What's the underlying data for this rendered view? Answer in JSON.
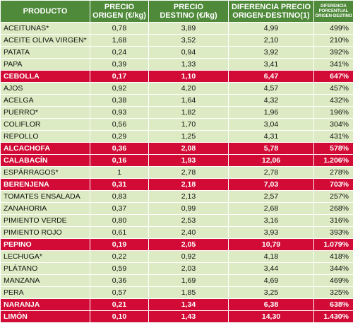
{
  "headers": {
    "producto": "PRODUCTO",
    "origen_line1": "PRECIO",
    "origen_line2": "ORIGEN (€/kg)",
    "destino_line1": "PRECIO",
    "destino_line2": "DESTINO (€/kg)",
    "diferencia_line1": "DIFERENCIA PRECIO",
    "diferencia_line2": "ORIGEN-DESTINO(1)",
    "porcentual_line1": "DIFERENCIA",
    "porcentual_line2": "PORCENTUAL",
    "porcentual_line3": "ORIGEN-DESTINO"
  },
  "rows": [
    {
      "producto": "ACEITUNAS*",
      "origen": "0,78",
      "destino": "3,89",
      "diferencia": "4,99",
      "porcentaje": "499%",
      "highlight": false
    },
    {
      "producto": "ACEITE OLIVA VIRGEN*",
      "origen": "1,68",
      "destino": "3,52",
      "diferencia": "2,10",
      "porcentaje": "210%",
      "highlight": false
    },
    {
      "producto": "PATATA",
      "origen": "0,24",
      "destino": "0,94",
      "diferencia": "3,92",
      "porcentaje": "392%",
      "highlight": false
    },
    {
      "producto": "PAPA",
      "origen": "0,39",
      "destino": "1,33",
      "diferencia": "3,41",
      "porcentaje": "341%",
      "highlight": false
    },
    {
      "producto": "CEBOLLA",
      "origen": "0,17",
      "destino": "1,10",
      "diferencia": "6,47",
      "porcentaje": "647%",
      "highlight": true
    },
    {
      "producto": "AJOS",
      "origen": "0,92",
      "destino": "4,20",
      "diferencia": "4,57",
      "porcentaje": "457%",
      "highlight": false
    },
    {
      "producto": "ACELGA",
      "origen": "0,38",
      "destino": "1,64",
      "diferencia": "4,32",
      "porcentaje": "432%",
      "highlight": false
    },
    {
      "producto": "PUERRO*",
      "origen": "0,93",
      "destino": "1,82",
      "diferencia": "1,96",
      "porcentaje": "196%",
      "highlight": false
    },
    {
      "producto": "COLIFLOR",
      "origen": "0,56",
      "destino": "1,70",
      "diferencia": "3,04",
      "porcentaje": "304%",
      "highlight": false
    },
    {
      "producto": "REPOLLO",
      "origen": "0,29",
      "destino": "1,25",
      "diferencia": "4,31",
      "porcentaje": "431%",
      "highlight": false
    },
    {
      "producto": "ALCACHOFA",
      "origen": "0,36",
      "destino": "2,08",
      "diferencia": "5,78",
      "porcentaje": "578%",
      "highlight": true
    },
    {
      "producto": "CALABACÍN",
      "origen": "0,16",
      "destino": "1,93",
      "diferencia": "12,06",
      "porcentaje": "1.206%",
      "highlight": true
    },
    {
      "producto": "ESPÁRRAGOS*",
      "origen": "1",
      "destino": "2,78",
      "diferencia": "2,78",
      "porcentaje": "278%",
      "highlight": false
    },
    {
      "producto": "BERENJENA",
      "origen": "0,31",
      "destino": "2,18",
      "diferencia": "7,03",
      "porcentaje": "703%",
      "highlight": true
    },
    {
      "producto": "TOMATES ENSALADA",
      "origen": "0,83",
      "destino": "2,13",
      "diferencia": "2,57",
      "porcentaje": "257%",
      "highlight": false
    },
    {
      "producto": "ZANAHORIA",
      "origen": "0,37",
      "destino": "0,99",
      "diferencia": "2,68",
      "porcentaje": "268%",
      "highlight": false
    },
    {
      "producto": "PIMIENTO VERDE",
      "origen": "0,80",
      "destino": "2,53",
      "diferencia": "3,16",
      "porcentaje": "316%",
      "highlight": false
    },
    {
      "producto": "PIMIENTO ROJO",
      "origen": "0,61",
      "destino": "2,40",
      "diferencia": "3,93",
      "porcentaje": "393%",
      "highlight": false
    },
    {
      "producto": "PEPINO",
      "origen": "0,19",
      "destino": "2,05",
      "diferencia": "10,79",
      "porcentaje": "1.079%",
      "highlight": true
    },
    {
      "producto": "LECHUGA*",
      "origen": "0,22",
      "destino": "0,92",
      "diferencia": "4,18",
      "porcentaje": "418%",
      "highlight": false
    },
    {
      "producto": "PLÁTANO",
      "origen": "0,59",
      "destino": "2,03",
      "diferencia": "3,44",
      "porcentaje": "344%",
      "highlight": false
    },
    {
      "producto": "MANZANA",
      "origen": "0,36",
      "destino": "1,69",
      "diferencia": "4,69",
      "porcentaje": "469%",
      "highlight": false
    },
    {
      "producto": "PERA",
      "origen": "0,57",
      "destino": "1,85",
      "diferencia": "3,25",
      "porcentaje": "325%",
      "highlight": false
    },
    {
      "producto": "NARANJA",
      "origen": "0,21",
      "destino": "1,34",
      "diferencia": "6,38",
      "porcentaje": "638%",
      "highlight": true
    },
    {
      "producto": "LIMÓN",
      "origen": "0,10",
      "destino": "1,43",
      "diferencia": "14,30",
      "porcentaje": "1.430%",
      "highlight": true
    }
  ]
}
